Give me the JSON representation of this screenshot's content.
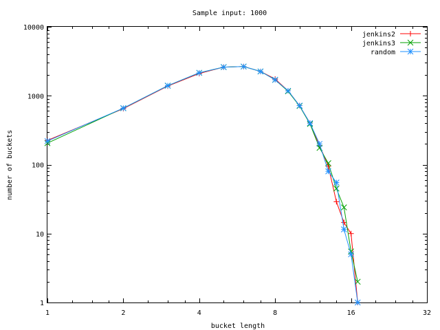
{
  "chart_data": {
    "type": "line",
    "title": "Sample input: 1000",
    "xlabel": "bucket length",
    "ylabel": "number of buckets",
    "xscale": "log2",
    "yscale": "log10",
    "xlim": [
      1,
      32
    ],
    "ylim": [
      1,
      10000
    ],
    "xticks": [
      1,
      2,
      4,
      8,
      16,
      32
    ],
    "yticks": [
      1,
      10,
      100,
      1000,
      10000
    ],
    "xtick_labels": [
      "1",
      "2",
      "4",
      "8",
      "16",
      "32"
    ],
    "ytick_labels": [
      "1",
      "10",
      "100",
      "1000",
      "10000"
    ],
    "grid": false,
    "legend": "top-right",
    "series": [
      {
        "name": "jenkins2",
        "color": "#ff0000",
        "marker": "plus",
        "x": [
          1,
          2,
          3,
          4,
          5,
          6,
          7,
          8,
          9,
          10,
          11,
          12,
          13,
          14,
          15,
          16,
          17
        ],
        "y": [
          225,
          650,
          1380,
          2100,
          2600,
          2650,
          2250,
          1750,
          1180,
          720,
          400,
          190,
          95,
          29,
          14.5,
          10,
          1
        ]
      },
      {
        "name": "jenkins3",
        "color": "#00a000",
        "marker": "cross",
        "x": [
          1,
          2,
          3,
          4,
          5,
          6,
          7,
          8,
          9,
          10,
          11,
          12,
          13,
          14,
          15,
          16,
          17
        ],
        "y": [
          205,
          660,
          1400,
          2150,
          2600,
          2650,
          2250,
          1700,
          1160,
          710,
          390,
          175,
          105,
          45,
          24,
          5.5,
          2
        ]
      },
      {
        "name": "random",
        "color": "#1e90ff",
        "marker": "star",
        "x": [
          1,
          2,
          3,
          4,
          5,
          6,
          7,
          8,
          9,
          10,
          11,
          12,
          13,
          14,
          15,
          16,
          17
        ],
        "y": [
          220,
          660,
          1400,
          2150,
          2600,
          2650,
          2250,
          1700,
          1180,
          720,
          400,
          200,
          80,
          55,
          11.5,
          5,
          1
        ]
      }
    ]
  }
}
